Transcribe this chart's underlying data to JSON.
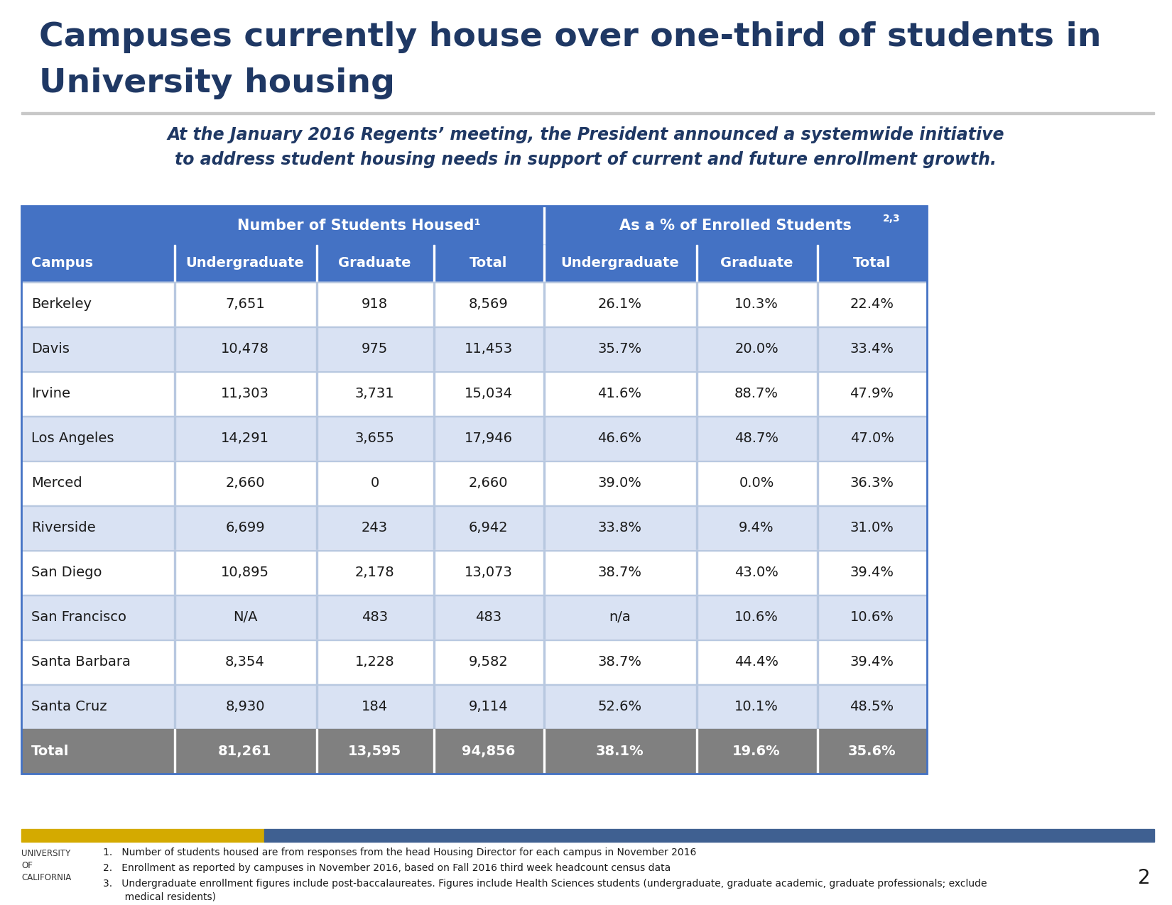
{
  "title_line1": "Campuses currently house over one-third of students in",
  "title_line2": "University housing",
  "subtitle": "At the January 2016 Regents’ meeting, the President announced a systemwide initiative\nto address student housing needs in support of current and future enrollment growth.",
  "col_group1": "Number of Students Housed¹",
  "col_group2": "As a % of Enrolled Students²ʳ",
  "col_headers": [
    "Campus",
    "Undergraduate",
    "Graduate",
    "Total",
    "Undergraduate",
    "Graduate",
    "Total"
  ],
  "rows": [
    [
      "Berkeley",
      "7,651",
      "918",
      "8,569",
      "26.1%",
      "10.3%",
      "22.4%"
    ],
    [
      "Davis",
      "10,478",
      "975",
      "11,453",
      "35.7%",
      "20.0%",
      "33.4%"
    ],
    [
      "Irvine",
      "11,303",
      "3,731",
      "15,034",
      "41.6%",
      "88.7%",
      "47.9%"
    ],
    [
      "Los Angeles",
      "14,291",
      "3,655",
      "17,946",
      "46.6%",
      "48.7%",
      "47.0%"
    ],
    [
      "Merced",
      "2,660",
      "0",
      "2,660",
      "39.0%",
      "0.0%",
      "36.3%"
    ],
    [
      "Riverside",
      "6,699",
      "243",
      "6,942",
      "33.8%",
      "9.4%",
      "31.0%"
    ],
    [
      "San Diego",
      "10,895",
      "2,178",
      "13,073",
      "38.7%",
      "43.0%",
      "39.4%"
    ],
    [
      "San Francisco",
      "N/A",
      "483",
      "483",
      "n/a",
      "10.6%",
      "10.6%"
    ],
    [
      "Santa Barbara",
      "8,354",
      "1,228",
      "9,582",
      "38.7%",
      "44.4%",
      "39.4%"
    ],
    [
      "Santa Cruz",
      "8,930",
      "184",
      "9,114",
      "52.6%",
      "10.1%",
      "48.5%"
    ]
  ],
  "total_row": [
    "Total",
    "81,261",
    "13,595",
    "94,856",
    "38.1%",
    "19.6%",
    "35.6%"
  ],
  "header_bg": "#4472C4",
  "header_text": "#FFFFFF",
  "subheader_bg": "#4472C4",
  "subheader_text": "#FFFFFF",
  "row_even_bg": "#FFFFFF",
  "row_odd_bg": "#D9E2F3",
  "total_bg": "#808080",
  "total_text": "#FFFFFF",
  "title_color": "#1F3864",
  "subtitle_color": "#1F3864",
  "body_text_color": "#1A1A1A",
  "footnote1": "Number of students housed are from responses from the head Housing Director for each campus in November 2016",
  "footnote2": "Enrollment as reported by campuses in November 2016, based on Fall 2016 third week headcount census data",
  "footnote3": "Undergraduate enrollment figures include post-baccalaureates. Figures include Health Sciences students (undergraduate, graduate academic, graduate professionals; exclude medical residents)",
  "page_num": "2",
  "uc_text": "UNIVERSITY\nOF\nCALIFORNIA",
  "bar_gold": "#D4AA00",
  "bar_blue": "#3F6091",
  "col_group2_sup": "2,3"
}
